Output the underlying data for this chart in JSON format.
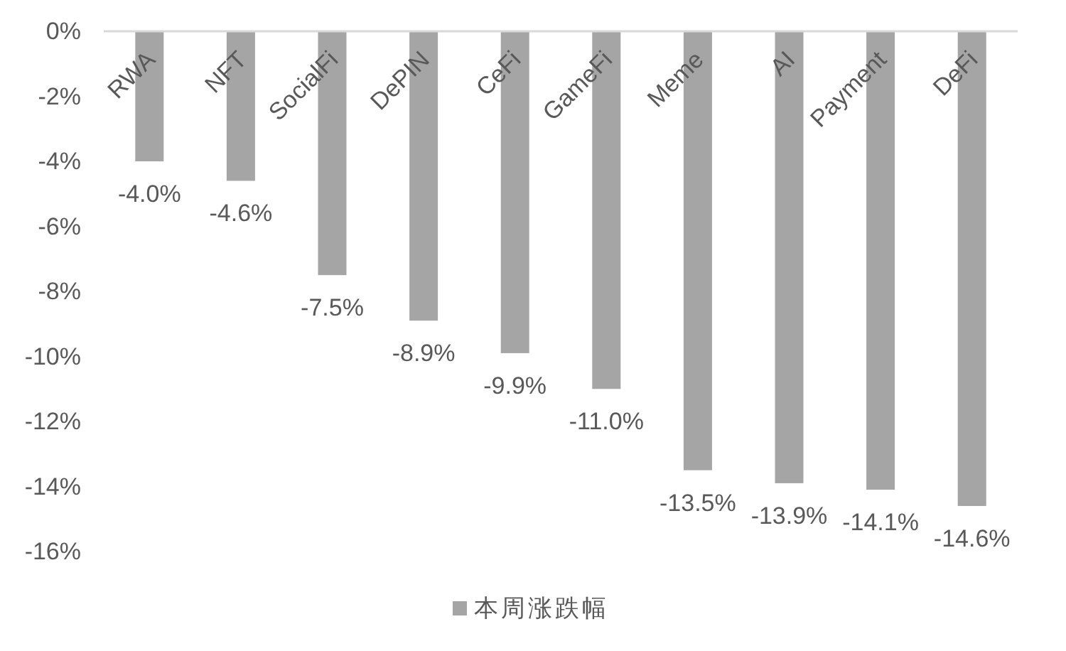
{
  "chart_data": {
    "type": "bar",
    "categories": [
      "RWA",
      "NFT",
      "SocialFi",
      "DePIN",
      "CeFi",
      "GameFi",
      "Meme",
      "AI",
      "Payment",
      "DeFi"
    ],
    "series": [
      {
        "name": "本周涨跌幅",
        "color": "#a5a5a5",
        "values": [
          -4.0,
          -4.6,
          -7.5,
          -8.9,
          -9.9,
          -11.0,
          -13.5,
          -13.9,
          -14.1,
          -14.6
        ],
        "value_labels": [
          "-4.0%",
          "-4.6%",
          "-7.5%",
          "-8.9%",
          "-9.9%",
          "-11.0%",
          "-13.5%",
          "-13.9%",
          "-14.1%",
          "-14.6%"
        ]
      }
    ],
    "ylim": [
      -16,
      0
    ],
    "yticks": [
      {
        "value": 0,
        "label": "0%"
      },
      {
        "value": -2,
        "label": "-2%"
      },
      {
        "value": -4,
        "label": "-4%"
      },
      {
        "value": -6,
        "label": "-6%"
      },
      {
        "value": -8,
        "label": "-8%"
      },
      {
        "value": -10,
        "label": "-10%"
      },
      {
        "value": -12,
        "label": "-12%"
      },
      {
        "value": -14,
        "label": "-14%"
      },
      {
        "value": -16,
        "label": "-16%"
      }
    ],
    "legend": "bottom"
  }
}
